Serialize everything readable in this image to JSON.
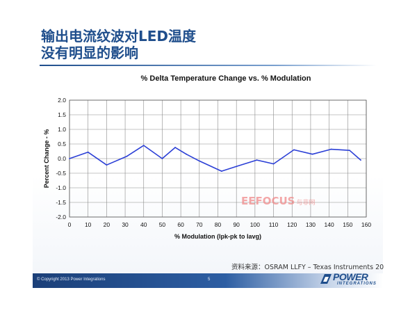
{
  "slide": {
    "title_line1": "输出电流纹波对LED温度",
    "title_line2": "没有明显的影响",
    "source": "资料来源：OSRAM LLFY – Texas Instruments 20",
    "footer_copyright": "© Copyright 2013 Power Integrations",
    "footer_page": "5",
    "logo_main": "POWER",
    "logo_sub": "INTEGRATIONS",
    "watermark": "EEFOCUS",
    "watermark_cn": "与非网"
  },
  "chart_data": {
    "type": "line",
    "title": "% Delta Temperature Change vs. % Modulation",
    "xlabel": "% Modulation (Ipk-pk to Iavg)",
    "ylabel": "Percent Change - %",
    "xlim": [
      0,
      160
    ],
    "ylim": [
      -2.0,
      2.0
    ],
    "xticks": [
      0,
      10,
      20,
      30,
      40,
      50,
      60,
      70,
      80,
      90,
      100,
      110,
      120,
      130,
      140,
      150,
      160
    ],
    "yticks": [
      "2.0",
      "1.5",
      "1.0",
      "0.5",
      "0.0",
      "-0.5",
      "-1.0",
      "-1.5",
      "-2.0"
    ],
    "grid": true,
    "series": [
      {
        "color": "#2b3fd6",
        "x": [
          0,
          10,
          20,
          31,
          40,
          50,
          57,
          63,
          70,
          82,
          90,
          101,
          110,
          121,
          131,
          141,
          151,
          157
        ],
        "y": [
          0.0,
          0.22,
          -0.22,
          0.08,
          0.45,
          0.0,
          0.38,
          0.15,
          -0.08,
          -0.43,
          -0.27,
          -0.05,
          -0.18,
          0.3,
          0.15,
          0.32,
          0.28,
          -0.05
        ]
      }
    ]
  }
}
